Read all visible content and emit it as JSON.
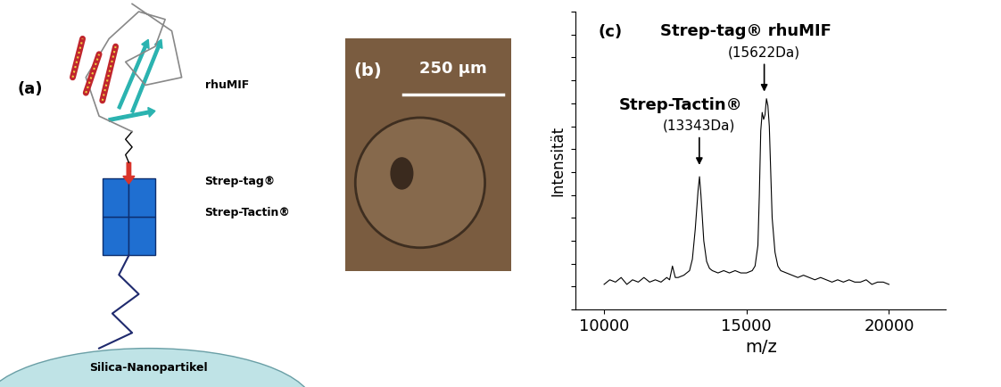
{
  "diagram": {
    "label": "(a)",
    "parts": [
      "rhuMIF",
      "Strep-tag®",
      "Strep-Tactin®",
      "Silica-Nanopartikel"
    ]
  },
  "photo": {
    "label": "(b)",
    "scale_bar": "250 µm"
  },
  "chart_data": {
    "type": "line",
    "label": "(c)",
    "x_label": "m/z",
    "y_label": "Intensität",
    "x": [
      10000,
      10200,
      10400,
      10600,
      10800,
      11000,
      11200,
      11400,
      11600,
      11800,
      12000,
      12200,
      12300,
      12400,
      12500,
      12600,
      12800,
      13000,
      13100,
      13200,
      13300,
      13350,
      13400,
      13500,
      13600,
      13700,
      13800,
      14000,
      14200,
      14400,
      14600,
      14800,
      15000,
      15200,
      15300,
      15400,
      15450,
      15500,
      15550,
      15600,
      15650,
      15700,
      15750,
      15800,
      15850,
      15900,
      16000,
      16100,
      16200,
      16400,
      16600,
      16800,
      17000,
      17200,
      17400,
      17600,
      17800,
      18000,
      18200,
      18400,
      18600,
      18800,
      19000,
      19200,
      19400,
      19600,
      19800,
      20000
    ],
    "values": [
      11,
      13,
      12,
      14,
      11,
      13,
      12,
      14,
      12,
      13,
      12,
      14,
      13,
      19,
      14,
      14,
      15,
      17,
      22,
      35,
      52,
      58,
      50,
      30,
      21,
      18,
      17,
      16,
      17,
      16,
      17,
      16,
      16,
      17,
      19,
      28,
      50,
      78,
      86,
      83,
      85,
      92,
      89,
      80,
      60,
      40,
      25,
      19,
      17,
      16,
      15,
      14,
      15,
      14,
      13,
      14,
      13,
      12,
      13,
      12,
      13,
      12,
      12,
      13,
      11,
      12,
      12,
      11
    ],
    "color": "#000000",
    "xlim": [
      9000,
      22000
    ],
    "xticks": [
      10000,
      15000,
      20000
    ],
    "ylim": [
      0,
      130
    ],
    "yticks": [
      0,
      10,
      20,
      30,
      40,
      50,
      60,
      70,
      80,
      90,
      100,
      110,
      120,
      130
    ],
    "tick_labels": "x",
    "annotations": [
      {
        "text": "Strep-Tactin®",
        "label": "(13343Da)",
        "x": 13343,
        "y": 62
      },
      {
        "text": "Strep-tag® rhuMIF",
        "label": "(15622Da)",
        "x": 15622,
        "y": 94
      }
    ]
  }
}
